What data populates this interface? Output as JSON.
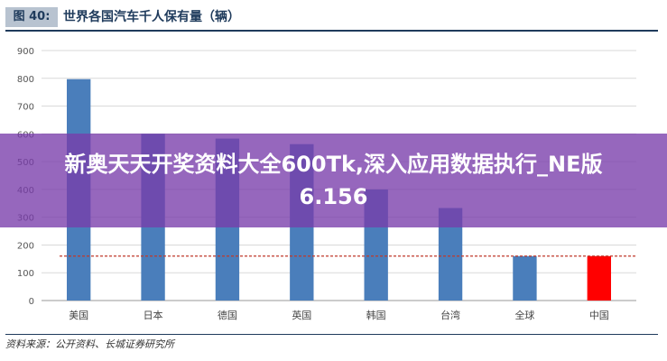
{
  "header": {
    "figure_label": "图 40:",
    "figure_title": "世界各国汽车千人保有量（辆）"
  },
  "overlay": {
    "text": "新奥天天开奖资料大全600Tk,深入应用数据执行_NE版6.156"
  },
  "source": {
    "text": "资料来源：公开资料、长城证券研究所"
  },
  "chart_data": {
    "type": "bar",
    "categories": [
      "美国",
      "日本",
      "德国",
      "英国",
      "韩国",
      "台湾",
      "全球",
      "中国"
    ],
    "values": [
      797,
      600,
      583,
      563,
      400,
      333,
      160,
      160
    ],
    "ylim": [
      0,
      900
    ],
    "yticks": [
      0,
      100,
      200,
      300,
      400,
      500,
      600,
      700,
      800,
      900
    ],
    "reference_line": 160,
    "grid": true,
    "colors": {
      "bar": "#4a7ebb",
      "highlight_bar": "#ff0000",
      "reference_line": "#c0392b",
      "grid": "#d9d9d9"
    },
    "highlight_category": "中国"
  }
}
